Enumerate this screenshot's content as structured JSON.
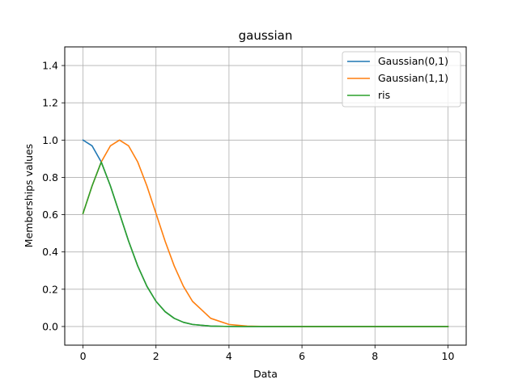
{
  "chart_data": {
    "type": "line",
    "title": "gaussian",
    "xlabel": "Data",
    "ylabel": "Memberships values",
    "xlim": [
      -0.5,
      10.5
    ],
    "ylim": [
      -0.1,
      1.5
    ],
    "xticks": [
      0,
      2,
      4,
      6,
      8,
      10
    ],
    "xtick_labels": [
      "0",
      "2",
      "4",
      "6",
      "8",
      "10"
    ],
    "yticks": [
      0.0,
      0.2,
      0.4,
      0.6,
      0.8,
      1.0,
      1.2,
      1.4
    ],
    "ytick_labels": [
      "0.0",
      "0.2",
      "0.4",
      "0.6",
      "0.8",
      "1.0",
      "1.2",
      "1.4"
    ],
    "grid": true,
    "legend_position": "top-right",
    "x": [
      0,
      0.25,
      0.5,
      0.75,
      1,
      1.25,
      1.5,
      1.75,
      2,
      2.25,
      2.5,
      2.75,
      3,
      3.5,
      4,
      4.5,
      5,
      6,
      7,
      8,
      9,
      10
    ],
    "series": [
      {
        "name": "Gaussian(0,1)",
        "color": "#1f77b4",
        "values": [
          1.0,
          0.969,
          0.8825,
          0.7548,
          0.6065,
          0.4578,
          0.3247,
          0.2163,
          0.1353,
          0.0796,
          0.0439,
          0.0228,
          0.0111,
          0.0022,
          0.0003,
          0.0,
          0.0,
          0.0,
          0.0,
          0.0,
          0.0,
          0.0
        ]
      },
      {
        "name": "Gaussian(1,1)",
        "color": "#ff7f0e",
        "values": [
          0.6065,
          0.7548,
          0.8825,
          0.969,
          1.0,
          0.969,
          0.8825,
          0.7548,
          0.6065,
          0.4578,
          0.3247,
          0.2163,
          0.1353,
          0.0439,
          0.0111,
          0.0022,
          0.0003,
          0.0,
          0.0,
          0.0,
          0.0,
          0.0
        ]
      },
      {
        "name": "ris",
        "color": "#2ca02c",
        "values": [
          0.6065,
          0.7548,
          0.8825,
          0.7548,
          0.6065,
          0.4578,
          0.3247,
          0.2163,
          0.1353,
          0.0796,
          0.0439,
          0.0228,
          0.0111,
          0.0022,
          0.0003,
          0.0,
          0.0,
          0.0,
          0.0,
          0.0,
          0.0,
          0.0
        ]
      }
    ]
  }
}
